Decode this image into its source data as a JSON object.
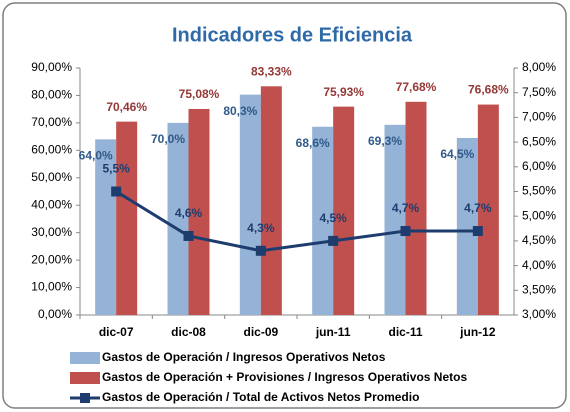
{
  "chart_data": {
    "type": "bar",
    "title": "Indicadores de Eficiencia",
    "categories": [
      "dic-07",
      "dic-08",
      "dic-09",
      "jun-11",
      "dic-11",
      "jun-12"
    ],
    "series": [
      {
        "name": "Gastos de Operación / Ingresos Operativos Netos",
        "type": "bar",
        "color": "#95b3d7",
        "label_color": "#2f5a8a",
        "values": [
          64.0,
          70.0,
          80.3,
          68.6,
          69.3,
          64.5
        ],
        "value_labels": [
          "64,0%",
          "70,0%",
          "80,3%",
          "68,6%",
          "69,3%",
          "64,5%"
        ]
      },
      {
        "name": "Gastos de Operación + Provisiones / Ingresos Operativos Netos",
        "type": "bar",
        "color": "#c0504d",
        "label_color": "#953735",
        "values": [
          70.46,
          75.08,
          83.33,
          75.93,
          77.68,
          76.68
        ],
        "value_labels": [
          "70,46%",
          "75,08%",
          "83,33%",
          "75,93%",
          "77,68%",
          "76,68%"
        ]
      },
      {
        "name": "Gastos de Operación / Total de Activos Netos Promedio",
        "type": "line",
        "axis": "y2",
        "color": "#1f3c6e",
        "label_color": "#1f3c6e",
        "values": [
          5.5,
          4.6,
          4.3,
          4.5,
          4.7,
          4.7
        ],
        "value_labels": [
          "5,5%",
          "4,6%",
          "4,3%",
          "4,5%",
          "4,7%",
          "4,7%"
        ]
      }
    ],
    "ylim": [
      0,
      90
    ],
    "yticks": [
      {
        "value": 0,
        "label": "0,00%"
      },
      {
        "value": 10,
        "label": "10,00%"
      },
      {
        "value": 20,
        "label": "20,00%"
      },
      {
        "value": 30,
        "label": "30,00%"
      },
      {
        "value": 40,
        "label": "40,00%"
      },
      {
        "value": 50,
        "label": "50,00%"
      },
      {
        "value": 60,
        "label": "60,00%"
      },
      {
        "value": 70,
        "label": "70,00%"
      },
      {
        "value": 80,
        "label": "80,00%"
      },
      {
        "value": 90,
        "label": "90,00%"
      }
    ],
    "y2lim": [
      3,
      8
    ],
    "y2ticks": [
      {
        "value": 3,
        "label": "3,00%"
      },
      {
        "value": 3.5,
        "label": "3,50%"
      },
      {
        "value": 4,
        "label": "4,00%"
      },
      {
        "value": 4.5,
        "label": "4,50%"
      },
      {
        "value": 5,
        "label": "5,00%"
      },
      {
        "value": 5.5,
        "label": "5,50%"
      },
      {
        "value": 6,
        "label": "6,00%"
      },
      {
        "value": 6.5,
        "label": "6,50%"
      },
      {
        "value": 7,
        "label": "7,00%"
      },
      {
        "value": 7.5,
        "label": "7,50%"
      },
      {
        "value": 8,
        "label": "8,00%"
      }
    ]
  }
}
